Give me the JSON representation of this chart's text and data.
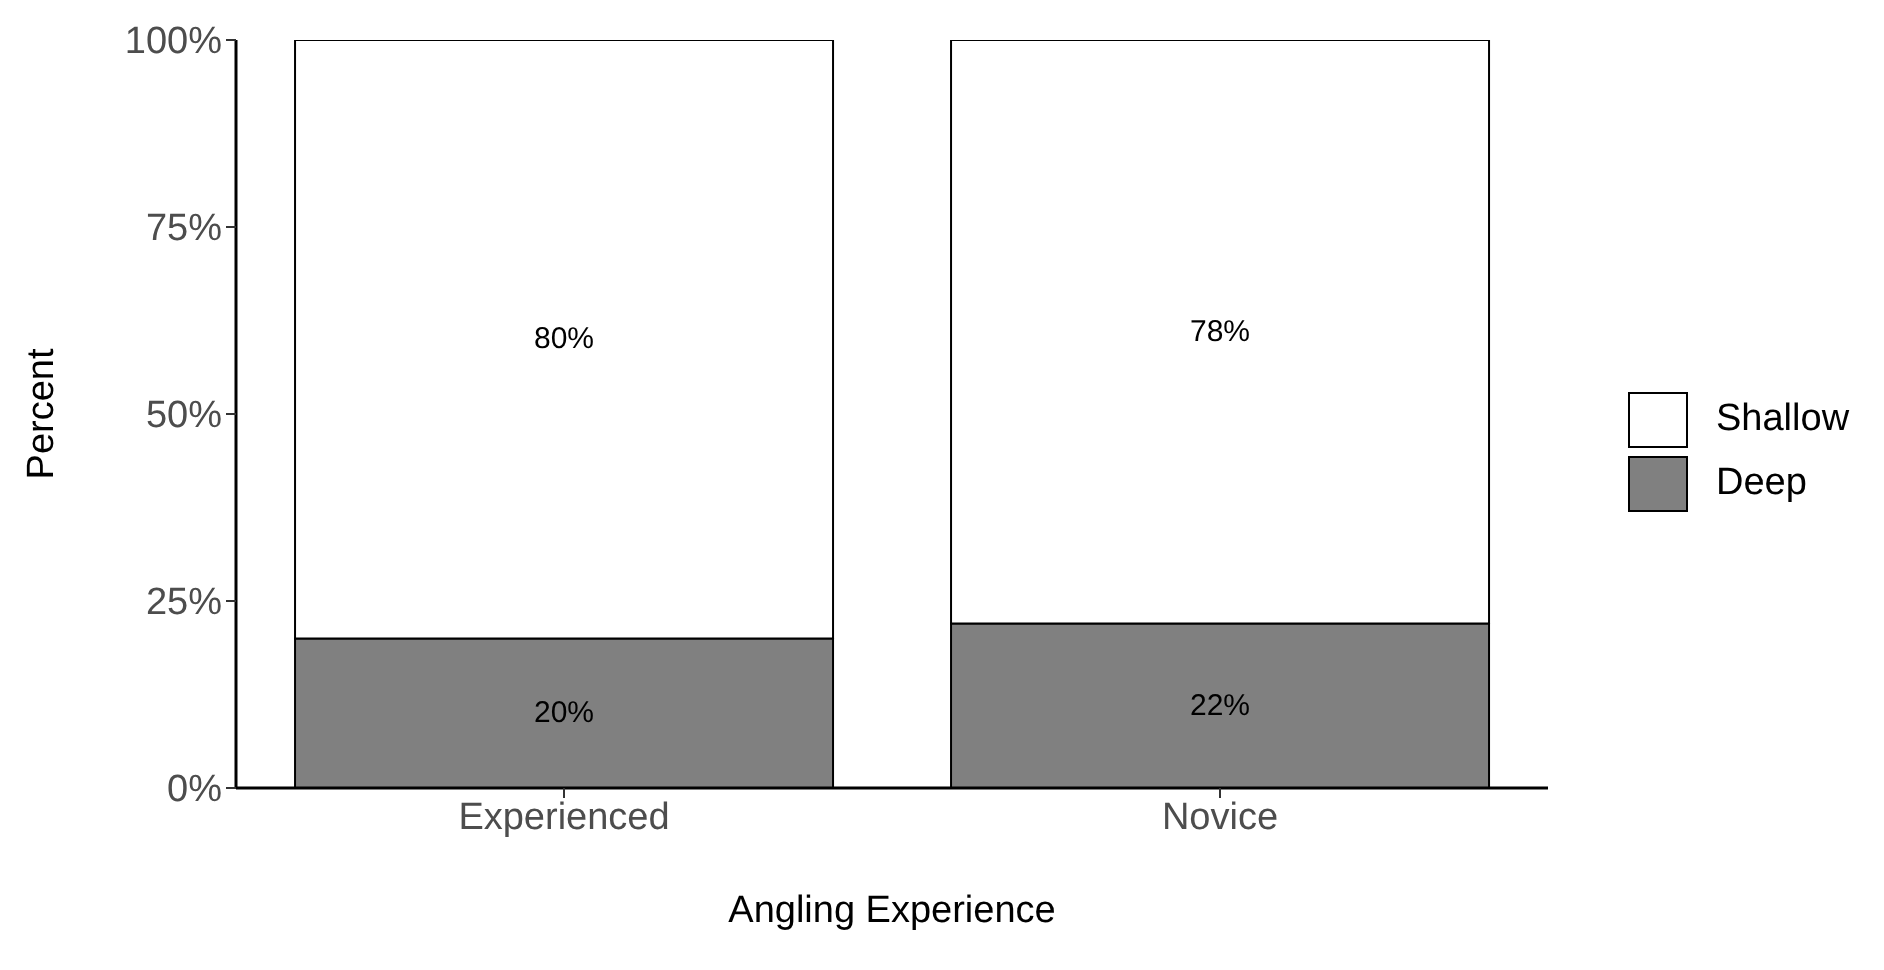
{
  "chart_data": {
    "type": "bar",
    "stacked": true,
    "xlabel": "Angling Experience",
    "ylabel": "Percent",
    "categories": [
      "Experienced",
      "Novice"
    ],
    "series": [
      {
        "name": "Deep",
        "color": "#808080",
        "values": [
          20,
          22
        ],
        "value_labels": [
          "20%",
          "22%"
        ]
      },
      {
        "name": "Shallow",
        "color": "#ffffff",
        "values": [
          80,
          78
        ],
        "value_labels": [
          "80%",
          "78%"
        ]
      }
    ],
    "ylim": [
      0,
      100
    ],
    "yticks": [
      {
        "value": 0,
        "label": "0%"
      },
      {
        "value": 25,
        "label": "25%"
      },
      {
        "value": 50,
        "label": "50%"
      },
      {
        "value": 75,
        "label": "75%"
      },
      {
        "value": 100,
        "label": "100%"
      }
    ],
    "grid": false,
    "legend": "right"
  }
}
